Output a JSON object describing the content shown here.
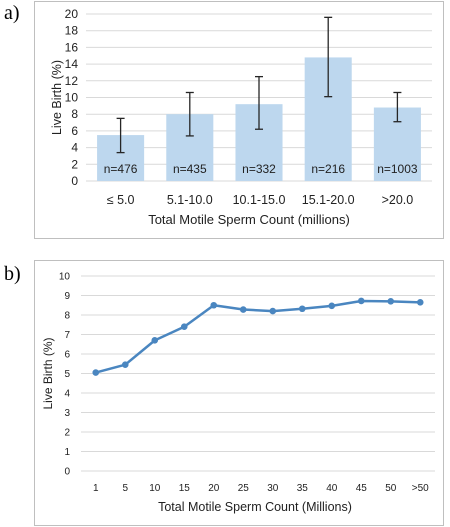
{
  "panels": {
    "a_label": "a)",
    "b_label": "b)"
  },
  "chart_data": [
    {
      "type": "bar",
      "panel": "a",
      "title": "",
      "xlabel": "Total Motile Sperm Count (millions)",
      "ylabel": "Live Birth (%)",
      "ylim": [
        0,
        20
      ],
      "yticks": [
        0,
        2,
        4,
        6,
        8,
        10,
        12,
        14,
        16,
        18,
        20
      ],
      "grid": true,
      "legend": "none",
      "categories": [
        "≤ 5.0",
        "5.1-10.0",
        "10.1-15.0",
        "15.1-20.0",
        ">20.0"
      ],
      "values": [
        5.5,
        8.0,
        9.2,
        14.8,
        8.8
      ],
      "error_low": [
        3.4,
        5.4,
        6.2,
        10.1,
        7.1
      ],
      "error_high": [
        7.5,
        10.6,
        12.5,
        19.6,
        10.6
      ],
      "annotations": [
        "n=476",
        "n=435",
        "n=332",
        "n=216",
        "n=1003"
      ],
      "colors": {
        "bar": "#bdd7ee",
        "error": "#262626",
        "grid": "#d9d9d9"
      }
    },
    {
      "type": "line",
      "panel": "b",
      "title": "",
      "xlabel": "Total Motile Sperm Count (Millions)",
      "ylabel": "Live Birth (%)",
      "ylim": [
        0,
        10
      ],
      "yticks": [
        0,
        1,
        2,
        3,
        4,
        5,
        6,
        7,
        8,
        9,
        10
      ],
      "grid": true,
      "legend": "none",
      "categories": [
        "1",
        "5",
        "10",
        "15",
        "20",
        "25",
        "30",
        "35",
        "40",
        "45",
        "50",
        ">50"
      ],
      "values": [
        5.05,
        5.45,
        6.7,
        7.4,
        8.5,
        8.28,
        8.2,
        8.32,
        8.47,
        8.72,
        8.7,
        8.65
      ],
      "colors": {
        "line": "#4a86c0",
        "marker": "#4a86c0",
        "grid": "#d9d9d9"
      }
    }
  ]
}
